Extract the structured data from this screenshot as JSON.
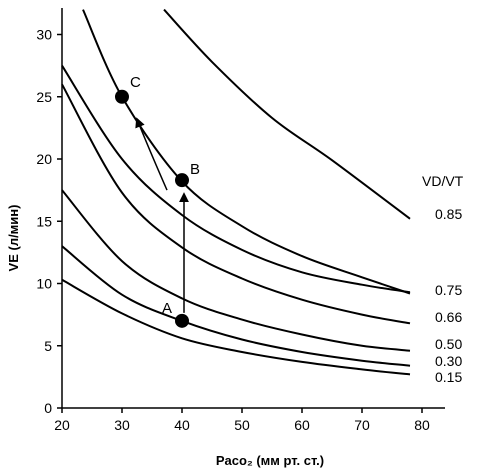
{
  "chart_data": {
    "type": "line",
    "xlabel": "Paco₂ (мм рт. ст.)",
    "ylabel": "VE (л/мин)",
    "xlim": [
      20,
      82
    ],
    "ylim": [
      0,
      32
    ],
    "xticks": [
      20,
      30,
      40,
      50,
      60,
      70,
      80
    ],
    "yticks": [
      0,
      5,
      10,
      15,
      20,
      25,
      30
    ],
    "legend_title": "VD/VT",
    "series": [
      {
        "name": "0.15",
        "points": [
          [
            20,
            10.3
          ],
          [
            30,
            7.6
          ],
          [
            40,
            5.6
          ],
          [
            50,
            4.5
          ],
          [
            60,
            3.7
          ],
          [
            70,
            3.1
          ],
          [
            78,
            2.7
          ]
        ]
      },
      {
        "name": "0.30",
        "points": [
          [
            20,
            13.0
          ],
          [
            30,
            9.1
          ],
          [
            40,
            7.0
          ],
          [
            50,
            5.5
          ],
          [
            60,
            4.5
          ],
          [
            70,
            3.8
          ],
          [
            78,
            3.4
          ]
        ]
      },
      {
        "name": "0.50",
        "points": [
          [
            20,
            17.5
          ],
          [
            30,
            11.8
          ],
          [
            40,
            8.8
          ],
          [
            50,
            7.1
          ],
          [
            60,
            5.9
          ],
          [
            70,
            5.0
          ],
          [
            78,
            4.6
          ]
        ]
      },
      {
        "name": "0.66",
        "points": [
          [
            20,
            26.0
          ],
          [
            30,
            17.3
          ],
          [
            40,
            12.9
          ],
          [
            50,
            10.4
          ],
          [
            60,
            8.7
          ],
          [
            70,
            7.5
          ],
          [
            78,
            6.8
          ]
        ]
      },
      {
        "name": "0.75",
        "points": [
          [
            20,
            27.5
          ],
          [
            30,
            20.0
          ],
          [
            40,
            15.5
          ],
          [
            50,
            12.7
          ],
          [
            60,
            10.9
          ],
          [
            70,
            9.9
          ],
          [
            78,
            9.3
          ]
        ]
      },
      {
        "name": "0.85",
        "points": [
          [
            23.5,
            32.0
          ],
          [
            30,
            25.0
          ],
          [
            40,
            18.2
          ],
          [
            50,
            14.6
          ],
          [
            60,
            12.2
          ],
          [
            70,
            10.5
          ],
          [
            78,
            9.2
          ]
        ]
      },
      {
        "name": "",
        "points": [
          [
            37,
            32.0
          ],
          [
            45,
            27.8
          ],
          [
            55,
            23.3
          ],
          [
            65,
            19.9
          ],
          [
            78,
            15.2
          ]
        ]
      }
    ],
    "curve_labels": [
      "0.85",
      "0.75",
      "0.66",
      "0.50",
      "0.30",
      "0.15"
    ],
    "points": [
      {
        "label": "A",
        "x": 40,
        "y": 7.0
      },
      {
        "label": "B",
        "x": 40,
        "y": 18.3
      },
      {
        "label": "C",
        "x": 30,
        "y": 25.0
      }
    ]
  }
}
